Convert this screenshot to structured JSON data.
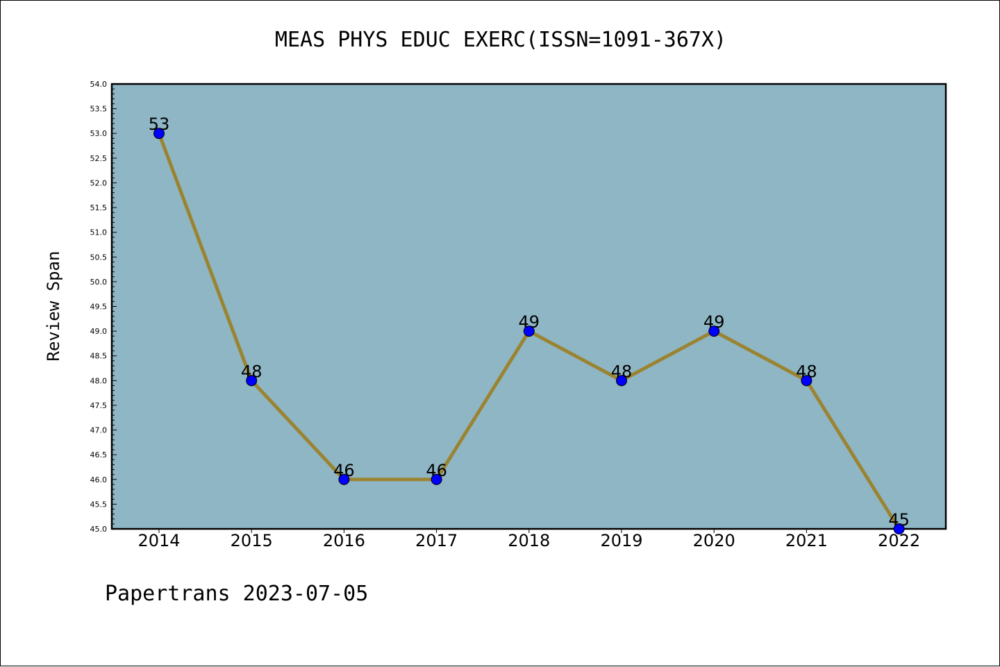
{
  "chart_data": {
    "type": "line",
    "title": "MEAS PHYS EDUC EXERC(ISSN=1091-367X)",
    "xlabel": "",
    "ylabel": "Review Span",
    "categories": [
      "2014",
      "2015",
      "2016",
      "2017",
      "2018",
      "2019",
      "2020",
      "2021",
      "2022"
    ],
    "series": [
      {
        "values": [
          53,
          48,
          46,
          46,
          49,
          48,
          49,
          48,
          45
        ]
      }
    ],
    "data_labels": [
      "53",
      "48",
      "46",
      "46",
      "49",
      "48",
      "49",
      "48",
      "45"
    ],
    "yticks": [
      "45.0",
      "45.5",
      "46.0",
      "46.5",
      "47.0",
      "47.5",
      "48.0",
      "48.5",
      "49.0",
      "49.5",
      "50.0",
      "50.5",
      "51.0",
      "51.5",
      "52.0",
      "52.5",
      "53.0",
      "53.5",
      "54.0"
    ],
    "ylim": [
      45,
      54
    ],
    "grid": false,
    "legend": "none",
    "colors": {
      "plot_background": "#8fb6c4",
      "line": "#9a8432",
      "marker": "#0000ff"
    }
  },
  "footer": {
    "text": "Papertrans 2023-07-05"
  }
}
